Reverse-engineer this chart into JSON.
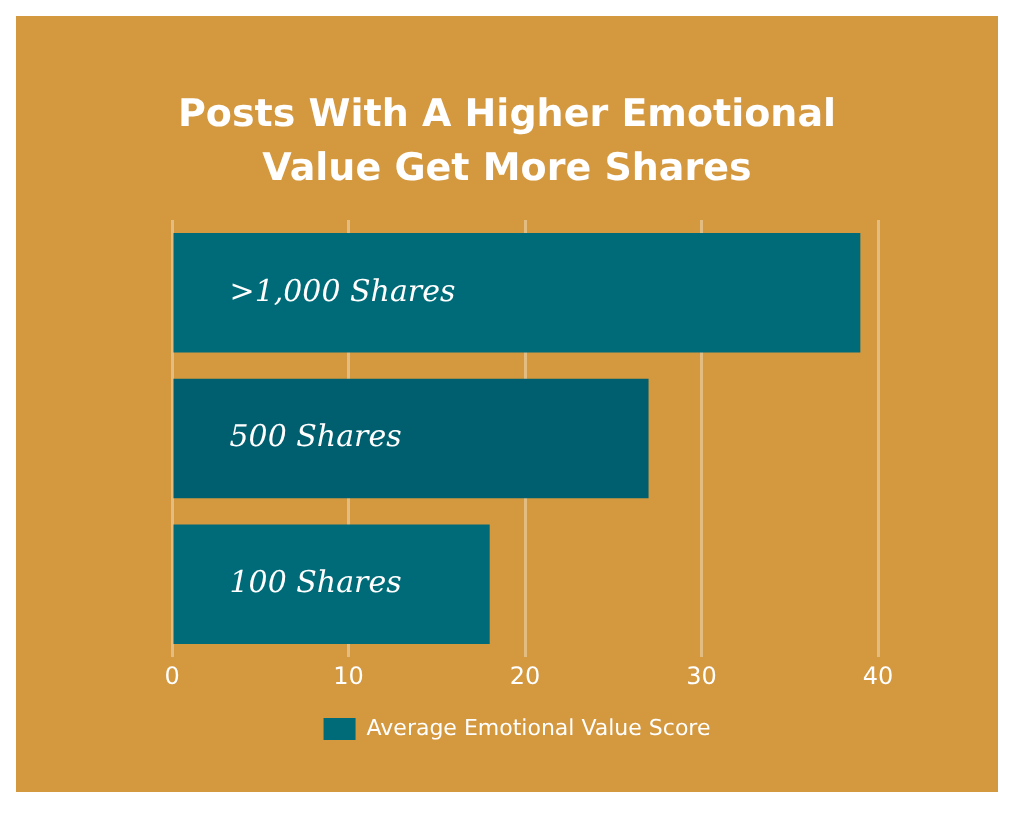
{
  "chart_data": {
    "type": "bar",
    "orientation": "horizontal",
    "title": "Posts With A Higher Emotional Value Get More Shares",
    "categories": [
      ">1,000 Shares",
      "500 Shares",
      "100 Shares"
    ],
    "series": [
      {
        "name": "Average Emotional Value Score",
        "color": "#006b78",
        "colors": [
          "#006b78",
          "#005f6e",
          "#006b78"
        ],
        "values": [
          39,
          27,
          18
        ]
      }
    ],
    "xlim": [
      0,
      40
    ],
    "xticks": [
      0,
      10,
      20,
      30,
      40
    ],
    "grid": "x",
    "legend": "bottom"
  }
}
